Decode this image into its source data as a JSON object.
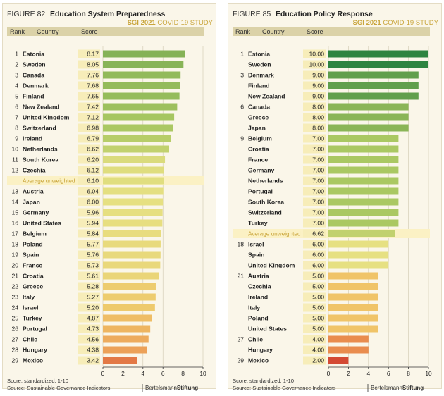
{
  "colors": {
    "header_band": "#dbd2a8",
    "score_box": "#f7edb9",
    "avg_row": "#fbf1c4",
    "sgi_gold": "#c9a53b"
  },
  "chart_data": [
    {
      "type": "bar",
      "orientation": "horizontal",
      "figure_label": "FIGURE 82",
      "title": "Education System Preparedness",
      "study_bold": "SGI 2021",
      "study_rest": "COVID-19 STUDY",
      "columns": {
        "rank": "Rank",
        "country": "Country",
        "score": "Score"
      },
      "xlim": [
        0,
        10
      ],
      "xticks": [
        0,
        2,
        4,
        6,
        8,
        10
      ],
      "footnote_1": "Score:   standardized, 1-10",
      "footnote_2": "Source:  Sustainable Governance Indicators",
      "brand_regular": "Bertelsmann",
      "brand_bold": "Stiftung",
      "rows": [
        {
          "rank": "1",
          "country": "Estonia",
          "score": "8.17",
          "value": 8.17
        },
        {
          "rank": "2",
          "country": "Sweden",
          "score": "8.05",
          "value": 8.05
        },
        {
          "rank": "3",
          "country": "Canada",
          "score": "7.76",
          "value": 7.76
        },
        {
          "rank": "4",
          "country": "Denmark",
          "score": "7.68",
          "value": 7.68
        },
        {
          "rank": "5",
          "country": "Finland",
          "score": "7.65",
          "value": 7.65
        },
        {
          "rank": "6",
          "country": "New Zealand",
          "score": "7.42",
          "value": 7.42
        },
        {
          "rank": "7",
          "country": "United Kingdom",
          "score": "7.12",
          "value": 7.12
        },
        {
          "rank": "8",
          "country": "Switzerland",
          "score": "6.98",
          "value": 6.98
        },
        {
          "rank": "9",
          "country": "Ireland",
          "score": "6.79",
          "value": 6.79
        },
        {
          "rank": "10",
          "country": "Netherlands",
          "score": "6.62",
          "value": 6.62
        },
        {
          "rank": "11",
          "country": "South Korea",
          "score": "6.20",
          "value": 6.2
        },
        {
          "rank": "12",
          "country": "Czechia",
          "score": "6.12",
          "value": 6.12
        },
        {
          "rank": "",
          "country": "Average unweighted",
          "score": "6.10",
          "value": 6.1,
          "avg": true
        },
        {
          "rank": "13",
          "country": "Austria",
          "score": "6.04",
          "value": 6.04
        },
        {
          "rank": "14",
          "country": "Japan",
          "score": "6.00",
          "value": 6.0
        },
        {
          "rank": "15",
          "country": "Germany",
          "score": "5.96",
          "value": 5.96
        },
        {
          "rank": "16",
          "country": "United States",
          "score": "5.94",
          "value": 5.94
        },
        {
          "rank": "17",
          "country": "Belgium",
          "score": "5.84",
          "value": 5.84
        },
        {
          "rank": "18",
          "country": "Poland",
          "score": "5.77",
          "value": 5.77
        },
        {
          "rank": "19",
          "country": "Spain",
          "score": "5.76",
          "value": 5.76
        },
        {
          "rank": "20",
          "country": "France",
          "score": "5.73",
          "value": 5.73
        },
        {
          "rank": "21",
          "country": "Croatia",
          "score": "5.61",
          "value": 5.61
        },
        {
          "rank": "22",
          "country": "Greece",
          "score": "5.28",
          "value": 5.28
        },
        {
          "rank": "23",
          "country": "Italy",
          "score": "5.27",
          "value": 5.27
        },
        {
          "rank": "24",
          "country": "Israel",
          "score": "5.20",
          "value": 5.2
        },
        {
          "rank": "25",
          "country": "Turkey",
          "score": "4.87",
          "value": 4.87
        },
        {
          "rank": "26",
          "country": "Portugal",
          "score": "4.73",
          "value": 4.73
        },
        {
          "rank": "27",
          "country": "Chile",
          "score": "4.56",
          "value": 4.56
        },
        {
          "rank": "28",
          "country": "Hungary",
          "score": "4.38",
          "value": 4.38
        },
        {
          "rank": "29",
          "country": "Mexico",
          "score": "3.42",
          "value": 3.42
        }
      ]
    },
    {
      "type": "bar",
      "orientation": "horizontal",
      "figure_label": "FIGURE 85",
      "title": "Education Policy Response",
      "study_bold": "SGI 2021",
      "study_rest": "COVID-19 STUDY",
      "columns": {
        "rank": "Rank",
        "country": "Country",
        "score": "Score"
      },
      "xlim": [
        0,
        10
      ],
      "xticks": [
        0,
        2,
        4,
        6,
        8,
        10
      ],
      "footnote_1": "Score:   standardized, 1-10",
      "footnote_2": "Source:  Sustainable Governance Indicators",
      "brand_regular": "Bertelsmann",
      "brand_bold": "Stiftung",
      "rows": [
        {
          "rank": "1",
          "country": "Estonia",
          "score": "10.00",
          "value": 10.0
        },
        {
          "rank": "",
          "country": "Sweden",
          "score": "10.00",
          "value": 10.0
        },
        {
          "rank": "3",
          "country": "Denmark",
          "score": "9.00",
          "value": 9.0
        },
        {
          "rank": "",
          "country": "Finland",
          "score": "9.00",
          "value": 9.0
        },
        {
          "rank": "",
          "country": "New Zealand",
          "score": "9.00",
          "value": 9.0
        },
        {
          "rank": "6",
          "country": "Canada",
          "score": "8.00",
          "value": 8.0
        },
        {
          "rank": "",
          "country": "Greece",
          "score": "8.00",
          "value": 8.0
        },
        {
          "rank": "",
          "country": "Japan",
          "score": "8.00",
          "value": 8.0
        },
        {
          "rank": "9",
          "country": "Belgium",
          "score": "7.00",
          "value": 7.0
        },
        {
          "rank": "",
          "country": "Croatia",
          "score": "7.00",
          "value": 7.0
        },
        {
          "rank": "",
          "country": "France",
          "score": "7.00",
          "value": 7.0
        },
        {
          "rank": "",
          "country": "Germany",
          "score": "7.00",
          "value": 7.0
        },
        {
          "rank": "",
          "country": "Netherlands",
          "score": "7.00",
          "value": 7.0
        },
        {
          "rank": "",
          "country": "Portugal",
          "score": "7.00",
          "value": 7.0
        },
        {
          "rank": "",
          "country": "South Korea",
          "score": "7.00",
          "value": 7.0
        },
        {
          "rank": "",
          "country": "Switzerland",
          "score": "7.00",
          "value": 7.0
        },
        {
          "rank": "",
          "country": "Turkey",
          "score": "7.00",
          "value": 7.0
        },
        {
          "rank": "",
          "country": "Average unweighted",
          "score": "6.62",
          "value": 6.62,
          "avg": true
        },
        {
          "rank": "18",
          "country": "Israel",
          "score": "6.00",
          "value": 6.0
        },
        {
          "rank": "",
          "country": "Spain",
          "score": "6.00",
          "value": 6.0
        },
        {
          "rank": "",
          "country": "United Kingdom",
          "score": "6.00",
          "value": 6.0
        },
        {
          "rank": "21",
          "country": "Austria",
          "score": "5.00",
          "value": 5.0
        },
        {
          "rank": "",
          "country": "Czechia",
          "score": "5.00",
          "value": 5.0
        },
        {
          "rank": "",
          "country": "Ireland",
          "score": "5.00",
          "value": 5.0
        },
        {
          "rank": "",
          "country": "Italy",
          "score": "5.00",
          "value": 5.0
        },
        {
          "rank": "",
          "country": "Poland",
          "score": "5.00",
          "value": 5.0
        },
        {
          "rank": "",
          "country": "United States",
          "score": "5.00",
          "value": 5.0
        },
        {
          "rank": "27",
          "country": "Chile",
          "score": "4.00",
          "value": 4.0
        },
        {
          "rank": "",
          "country": "Hungary",
          "score": "4.00",
          "value": 4.0
        },
        {
          "rank": "29",
          "country": "Mexico",
          "score": "2.00",
          "value": 2.0
        }
      ]
    }
  ]
}
